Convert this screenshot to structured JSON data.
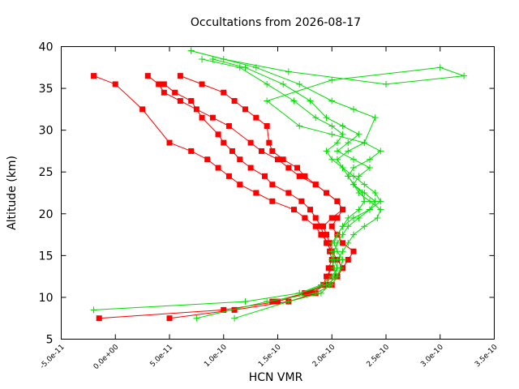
{
  "chart_data": {
    "type": "line",
    "title": "Occultations from 2026-08-17",
    "xlabel": "HCN VMR",
    "ylabel": "Altitude (km)",
    "xlim": [
      -5e-11,
      3.5e-10
    ],
    "ylim": [
      5,
      40
    ],
    "x_ticks": [
      {
        "value": -5e-11,
        "label": "-5.0e-11"
      },
      {
        "value": 0,
        "label": "0.0e+00"
      },
      {
        "value": 5e-11,
        "label": "5.0e-11"
      },
      {
        "value": 1e-10,
        "label": "1.0e-10"
      },
      {
        "value": 1.5e-10,
        "label": "1.5e-10"
      },
      {
        "value": 2e-10,
        "label": "2.0e-10"
      },
      {
        "value": 2.5e-10,
        "label": "2.5e-10"
      },
      {
        "value": 3e-10,
        "label": "3.0e-10"
      },
      {
        "value": 3.5e-10,
        "label": "3.5e-10"
      }
    ],
    "y_ticks": [
      {
        "value": 5,
        "label": "5"
      },
      {
        "value": 10,
        "label": "10"
      },
      {
        "value": 15,
        "label": "15"
      },
      {
        "value": 20,
        "label": "20"
      },
      {
        "value": 25,
        "label": "25"
      },
      {
        "value": 30,
        "label": "30"
      },
      {
        "value": 35,
        "label": "35"
      },
      {
        "value": 40,
        "label": "40"
      }
    ],
    "grid": false,
    "legend": "none",
    "series": [
      {
        "color": "#ff0000",
        "marker": "square",
        "x": [
          -1.5e-11,
          1e-10,
          1.5e-10,
          1.75e-10,
          1.95e-10,
          1.98e-10,
          1.97e-10,
          2e-10,
          1.98e-10,
          1.97e-10,
          1.9e-10,
          1.85e-10,
          1.75e-10,
          1.65e-10,
          1.45e-10,
          1.3e-10,
          1.15e-10,
          1.05e-10,
          9.5e-11,
          8.5e-11,
          7e-11,
          5e-11,
          2.5e-11,
          0,
          -2e-11
        ],
        "y": [
          7.5,
          8.5,
          9.5,
          10.5,
          11.5,
          12.5,
          13.5,
          14.5,
          15.5,
          16.5,
          17.5,
          18.5,
          19.5,
          20.5,
          21.5,
          22.5,
          23.5,
          24.5,
          25.5,
          26.5,
          27.5,
          28.5,
          32.5,
          35.5,
          36.5
        ]
      },
      {
        "color": "#ff0000",
        "marker": "square",
        "x": [
          5e-11,
          1.1e-10,
          1.6e-10,
          1.85e-10,
          2e-10,
          2.05e-10,
          2.1e-10,
          2.15e-10,
          2.2e-10,
          2.1e-10,
          2.05e-10,
          2e-10,
          2.05e-10,
          2.1e-10,
          2.05e-10,
          1.95e-10,
          1.85e-10,
          1.7e-10,
          1.6e-10,
          1.5e-10,
          1.35e-10,
          1.25e-10,
          1.05e-10,
          9e-11,
          7.5e-11,
          6e-11,
          4.5e-11,
          4e-11,
          3e-11
        ],
        "y": [
          7.5,
          8.5,
          9.5,
          10.5,
          11.5,
          12.5,
          13.5,
          14.5,
          15.5,
          16.5,
          17.5,
          18.5,
          19.5,
          20.5,
          21.5,
          22.5,
          23.5,
          24.5,
          25.5,
          26.5,
          27.5,
          28.5,
          30.5,
          31.5,
          32.5,
          33.5,
          34.5,
          35.5,
          36.5
        ]
      },
      {
        "color": "#ff0000",
        "marker": "square",
        "x": [
          1.45e-10,
          1.75e-10,
          1.92e-10,
          1.95e-10,
          2e-10,
          2.02e-10,
          2e-10,
          1.95e-10,
          1.92e-10,
          1.9e-10,
          1.85e-10,
          1.8e-10,
          1.72e-10,
          1.6e-10,
          1.45e-10,
          1.38e-10,
          1.25e-10,
          1.15e-10,
          1.08e-10,
          1e-10,
          9.5e-11,
          8e-11,
          7e-11,
          5.5e-11,
          4.5e-11
        ],
        "y": [
          9.5,
          10.5,
          11.5,
          12.5,
          13.5,
          14.5,
          15.5,
          16.5,
          17.5,
          18.5,
          19.5,
          20.5,
          21.5,
          22.5,
          23.5,
          24.5,
          25.5,
          26.5,
          27.5,
          28.5,
          29.5,
          31.5,
          33.5,
          34.5,
          35.5
        ]
      },
      {
        "color": "#ff0000",
        "marker": "square",
        "x": [
          1.8e-10,
          1.95e-10,
          2.05e-10,
          2.1e-10,
          2.05e-10,
          2e-10,
          1.98e-10,
          1.95e-10,
          1.92e-10,
          2e-10,
          2.1e-10,
          2.05e-10,
          1.95e-10,
          1.85e-10,
          1.75e-10,
          1.68e-10,
          1.55e-10,
          1.45e-10,
          1.42e-10,
          1.4e-10,
          1.3e-10,
          1.2e-10,
          1.1e-10,
          1e-10,
          8e-11,
          6e-11
        ],
        "y": [
          10.5,
          11.5,
          12.5,
          13.5,
          14.5,
          15.5,
          16.5,
          17.5,
          18.5,
          19.5,
          20.5,
          21.5,
          22.5,
          23.5,
          24.5,
          25.5,
          26.5,
          27.5,
          28.5,
          30.5,
          31.5,
          32.5,
          33.5,
          34.5,
          35.5,
          36.5
        ]
      },
      {
        "color": "#00dd00",
        "marker": "plus",
        "x": [
          -2e-11,
          1.2e-10,
          1.7e-10,
          1.95e-10,
          2.05e-10,
          2.08e-10,
          2.1e-10,
          2.05e-10,
          2.02e-10,
          2.05e-10,
          2.1e-10,
          2.2e-10,
          2.35e-10,
          2.45e-10,
          2.4e-10,
          2.3e-10,
          2.2e-10,
          2.1e-10,
          2.05e-10,
          2.15e-10,
          2.3e-10,
          2.4e-10,
          2.2e-10,
          2e-10,
          1.7e-10,
          1.3e-10,
          7e-11
        ],
        "y": [
          8.5,
          9.5,
          10.5,
          11.5,
          12.5,
          13.5,
          14.5,
          15.5,
          16.5,
          17.5,
          18.5,
          19.5,
          20.5,
          21.5,
          22.5,
          23.5,
          24.5,
          25.5,
          26.5,
          27.5,
          28.5,
          31.5,
          32.5,
          33.5,
          35.5,
          37.5,
          39.5
        ]
      },
      {
        "color": "#00dd00",
        "marker": "plus",
        "x": [
          7.5e-11,
          1.4e-10,
          1.85e-10,
          2e-10,
          2.05e-10,
          2.02e-10,
          2e-10,
          2.02e-10,
          2.05e-10,
          2.1e-10,
          2.15e-10,
          2.25e-10,
          2.35e-10,
          2.4e-10,
          2.3e-10,
          2.2e-10,
          2.25e-10,
          2.35e-10,
          2.2e-10,
          2.05e-10,
          2.15e-10,
          2.25e-10,
          2.1e-10,
          1.95e-10,
          1.8e-10,
          1.55e-10,
          1.2e-10,
          9e-11
        ],
        "y": [
          7.5,
          9.5,
          10.5,
          11.5,
          12.5,
          13.5,
          14.5,
          15.5,
          16.5,
          17.5,
          18.5,
          19.5,
          20.5,
          21.5,
          22.5,
          23.5,
          24.5,
          25.5,
          26.5,
          27.5,
          28.5,
          29.5,
          30.5,
          31.5,
          33.5,
          35.5,
          37.5,
          38.5
        ]
      },
      {
        "color": "#00dd00",
        "marker": "plus",
        "x": [
          1.1e-10,
          1.6e-10,
          1.9e-10,
          1.98e-10,
          2.02e-10,
          2.05e-10,
          2.02e-10,
          2e-10,
          2e-10,
          2.05e-10,
          2.1e-10,
          2.15e-10,
          2.25e-10,
          2.3e-10,
          2.28e-10,
          2.2e-10,
          2.15e-10,
          2.1e-10,
          2e-10,
          1.95e-10,
          2.05e-10,
          2.1e-10,
          2e-10,
          1.85e-10,
          1.65e-10,
          1.4e-10,
          1.15e-10,
          8e-11
        ],
        "y": [
          7.5,
          9.5,
          10.5,
          11.5,
          12.5,
          13.5,
          14.5,
          15.5,
          16.5,
          17.5,
          18.5,
          19.5,
          20.5,
          21.5,
          22.5,
          23.5,
          24.5,
          25.5,
          26.5,
          27.5,
          28.5,
          29.5,
          30.5,
          31.5,
          33.5,
          35.5,
          37.5,
          38.5
        ]
      },
      {
        "color": "#00dd00",
        "marker": "plus",
        "x": [
          1.7e-10,
          1.9e-10,
          2e-10,
          2.05e-10,
          2.05e-10,
          2.1e-10,
          2.15e-10,
          2.2e-10,
          2.3e-10,
          2.42e-10,
          2.45e-10,
          2.35e-10,
          2.25e-10,
          2.2e-10,
          2.15e-10,
          2.2e-10,
          2.35e-10,
          2.45e-10,
          2.3e-10,
          2e-10,
          1.7e-10,
          1.4e-10,
          2e-10,
          3e-10,
          3.22e-10,
          2.5e-10,
          1.6e-10,
          1e-10,
          7e-11
        ],
        "y": [
          10.5,
          11.5,
          12.5,
          13.5,
          14.5,
          15.5,
          16.5,
          17.5,
          18.5,
          19.5,
          20.5,
          21.5,
          22.5,
          23.5,
          24.5,
          25.5,
          26.5,
          27.5,
          28.5,
          29.5,
          30.5,
          33.5,
          36.0,
          37.5,
          36.5,
          35.5,
          37.0,
          38.5,
          39.5
        ]
      }
    ]
  }
}
